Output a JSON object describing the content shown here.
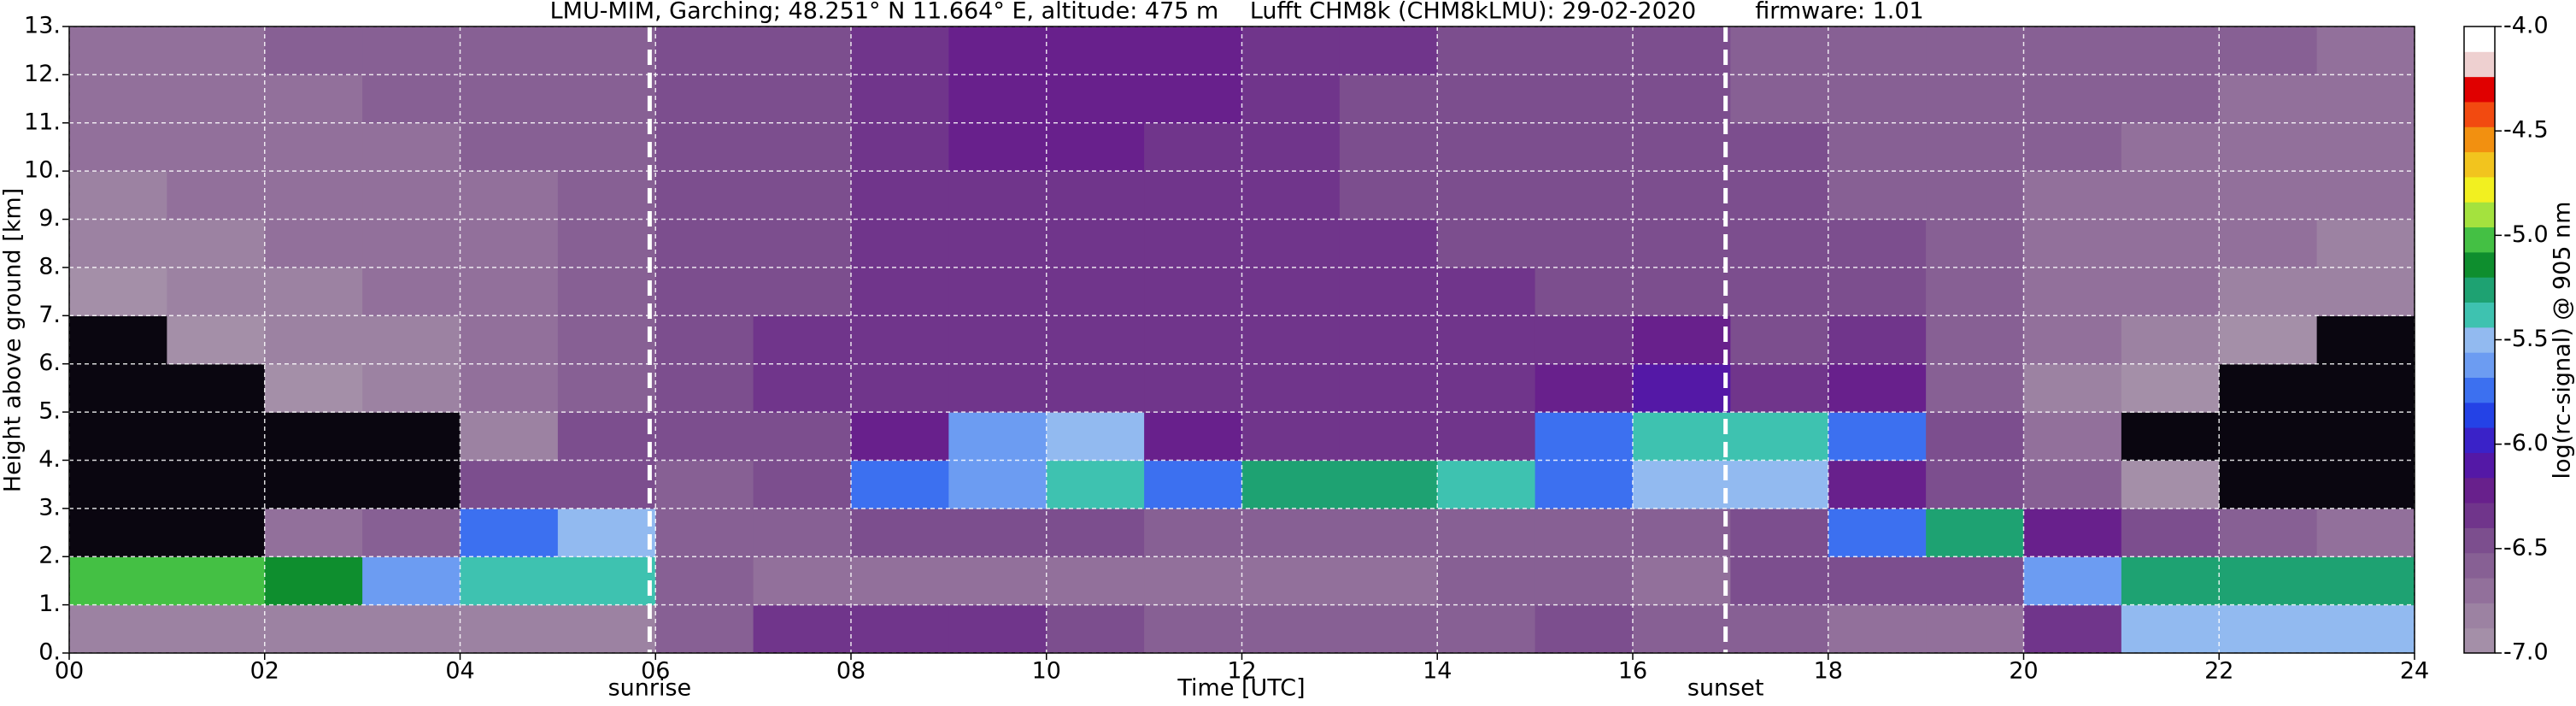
{
  "chart_data": {
    "type": "heatmap",
    "title": [
      "LMU-MIM, Garching; 48.251° N 11.664° E, altitude: 475 m",
      "Lufft CHM8k (CHM8kLMU): 29-02-2020",
      "firmware: 1.01"
    ],
    "xlabel": "Time [UTC]",
    "ylabel": "Height above ground [km]",
    "colorbar_label": "log(rc-signal) @ 905 nm",
    "xlim": [
      0,
      24
    ],
    "xticks": [
      {
        "value": 0,
        "label": "00"
      },
      {
        "value": 2,
        "label": "02"
      },
      {
        "value": 4,
        "label": "04"
      },
      {
        "value": 6,
        "label": "06"
      },
      {
        "value": 8,
        "label": "08"
      },
      {
        "value": 10,
        "label": "10"
      },
      {
        "value": 12,
        "label": "12"
      },
      {
        "value": 14,
        "label": "14"
      },
      {
        "value": 16,
        "label": "16"
      },
      {
        "value": 18,
        "label": "18"
      },
      {
        "value": 20,
        "label": "20"
      },
      {
        "value": 22,
        "label": "22"
      },
      {
        "value": 24,
        "label": "24"
      }
    ],
    "ylim": [
      0,
      13
    ],
    "yticks": [
      {
        "value": 0,
        "label": "0."
      },
      {
        "value": 1,
        "label": "1."
      },
      {
        "value": 2,
        "label": "2."
      },
      {
        "value": 3,
        "label": "3."
      },
      {
        "value": 4,
        "label": "4."
      },
      {
        "value": 5,
        "label": "5."
      },
      {
        "value": 6,
        "label": "6."
      },
      {
        "value": 7,
        "label": "7."
      },
      {
        "value": 8,
        "label": "8."
      },
      {
        "value": 9,
        "label": "9."
      },
      {
        "value": 10,
        "label": "10."
      },
      {
        "value": 11,
        "label": "11."
      },
      {
        "value": 12,
        "label": "12."
      },
      {
        "value": 13,
        "label": "13."
      }
    ],
    "grid": true,
    "annotations": [
      {
        "text": "sunrise",
        "x": 5.94
      },
      {
        "text": "sunset",
        "x": 16.95
      }
    ],
    "clim": [
      -7,
      -4
    ],
    "cticks": [
      {
        "value": -7,
        "label": "-7.0"
      },
      {
        "value": -6.5,
        "label": "-6.5"
      },
      {
        "value": -6,
        "label": "-6.0"
      },
      {
        "value": -5.5,
        "label": "-5.5"
      },
      {
        "value": -5,
        "label": "-5.0"
      },
      {
        "value": -4.5,
        "label": "-4.5"
      },
      {
        "value": -4,
        "label": "-4.0"
      }
    ],
    "colors": [
      "#a48fa8",
      "#9c82a2",
      "#92709b",
      "#876094",
      "#7c4e8e",
      "#70358b",
      "#68208c",
      "#5418a6",
      "#3a22c8",
      "#2442e6",
      "#3c70f0",
      "#6c9cf2",
      "#92baf0",
      "#3ec2b0",
      "#1ea272",
      "#0e8e2e",
      "#44c044",
      "#a4e23e",
      "#f2f020",
      "#f2c41e",
      "#f29010",
      "#f24a10",
      "#e00000",
      "#eed0d0",
      "#ffffff"
    ],
    "under_color": "#0a0610",
    "z": [
      [
        -6.8,
        -6.8,
        -6.8,
        -6.8,
        -6.8,
        -6.8,
        -6.6,
        -6.3,
        -6.3,
        -6.3,
        -6.5,
        -6.6,
        -6.6,
        -6.6,
        -6.6,
        -6.5,
        -6.6,
        -6.6,
        -6.7,
        -6.7,
        -6.3,
        -5.5,
        -5.5,
        -5.5
      ],
      [
        -5.0,
        -5.0,
        -5.2,
        -5.6,
        -5.4,
        -5.4,
        -6.6,
        -6.7,
        -6.7,
        -6.7,
        -6.7,
        -6.7,
        -6.7,
        -6.7,
        -6.6,
        -6.6,
        -6.7,
        -6.5,
        -6.5,
        -6.5,
        -5.6,
        -5.3,
        -5.3,
        -5.3
      ],
      [
        -7.2,
        -7.2,
        -6.7,
        -6.6,
        -5.8,
        -5.5,
        -6.6,
        -6.6,
        -6.5,
        -6.5,
        -6.5,
        -6.6,
        -6.6,
        -6.6,
        -6.6,
        -6.6,
        -6.6,
        -6.5,
        -5.8,
        -5.3,
        -6.2,
        -6.5,
        -6.6,
        -6.7
      ],
      [
        -7.2,
        -7.2,
        -7.2,
        -7.2,
        -6.5,
        -6.4,
        -6.6,
        -6.5,
        -5.8,
        -5.6,
        -5.4,
        -5.8,
        -5.3,
        -5.3,
        -5.4,
        -5.8,
        -5.5,
        -5.5,
        -6.2,
        -6.5,
        -6.6,
        -6.9,
        -7.2,
        -7.2
      ],
      [
        -7.2,
        -7.2,
        -7.2,
        -7.2,
        -6.8,
        -6.5,
        -6.4,
        -6.4,
        -6.2,
        -5.6,
        -5.5,
        -6.2,
        -6.3,
        -6.3,
        -6.3,
        -5.8,
        -5.4,
        -5.4,
        -5.8,
        -6.5,
        -6.7,
        -7.2,
        -7.2,
        -7.2
      ],
      [
        -7.2,
        -7.2,
        -6.9,
        -6.8,
        -6.7,
        -6.6,
        -6.4,
        -6.3,
        -6.3,
        -6.3,
        -6.3,
        -6.3,
        -6.3,
        -6.3,
        -6.3,
        -6.2,
        -6.1,
        -6.3,
        -6.2,
        -6.6,
        -6.8,
        -6.9,
        -7.2,
        -7.2
      ],
      [
        -7.2,
        -6.9,
        -6.8,
        -6.8,
        -6.7,
        -6.6,
        -6.4,
        -6.3,
        -6.3,
        -6.3,
        -6.3,
        -6.3,
        -6.3,
        -6.3,
        -6.3,
        -6.3,
        -6.2,
        -6.4,
        -6.3,
        -6.6,
        -6.7,
        -6.8,
        -6.9,
        -7.2
      ],
      [
        -6.9,
        -6.8,
        -6.8,
        -6.7,
        -6.7,
        -6.6,
        -6.5,
        -6.4,
        -6.3,
        -6.3,
        -6.3,
        -6.3,
        -6.3,
        -6.3,
        -6.3,
        -6.4,
        -6.4,
        -6.5,
        -6.4,
        -6.6,
        -6.7,
        -6.7,
        -6.8,
        -6.8
      ],
      [
        -6.8,
        -6.8,
        -6.7,
        -6.7,
        -6.7,
        -6.6,
        -6.5,
        -6.4,
        -6.3,
        -6.3,
        -6.3,
        -6.3,
        -6.3,
        -6.3,
        -6.4,
        -6.4,
        -6.5,
        -6.5,
        -6.5,
        -6.6,
        -6.7,
        -6.7,
        -6.7,
        -6.8
      ],
      [
        -6.8,
        -6.7,
        -6.7,
        -6.7,
        -6.7,
        -6.6,
        -6.5,
        -6.4,
        -6.3,
        -6.3,
        -6.3,
        -6.3,
        -6.3,
        -6.4,
        -6.4,
        -6.4,
        -6.5,
        -6.5,
        -6.6,
        -6.6,
        -6.7,
        -6.7,
        -6.7,
        -6.7
      ],
      [
        -6.7,
        -6.7,
        -6.7,
        -6.7,
        -6.6,
        -6.6,
        -6.5,
        -6.4,
        -6.3,
        -6.2,
        -6.2,
        -6.3,
        -6.3,
        -6.4,
        -6.4,
        -6.5,
        -6.5,
        -6.5,
        -6.6,
        -6.6,
        -6.6,
        -6.7,
        -6.7,
        -6.7
      ],
      [
        -6.7,
        -6.7,
        -6.7,
        -6.6,
        -6.6,
        -6.6,
        -6.5,
        -6.4,
        -6.3,
        -6.2,
        -6.2,
        -6.2,
        -6.3,
        -6.4,
        -6.4,
        -6.5,
        -6.5,
        -6.6,
        -6.6,
        -6.6,
        -6.6,
        -6.6,
        -6.7,
        -6.7
      ],
      [
        -6.7,
        -6.7,
        -6.6,
        -6.6,
        -6.6,
        -6.6,
        -6.5,
        -6.4,
        -6.3,
        -6.2,
        -6.2,
        -6.2,
        -6.3,
        -6.3,
        -6.4,
        -6.5,
        -6.5,
        -6.6,
        -6.6,
        -6.6,
        -6.6,
        -6.6,
        -6.6,
        -6.7
      ]
    ]
  }
}
